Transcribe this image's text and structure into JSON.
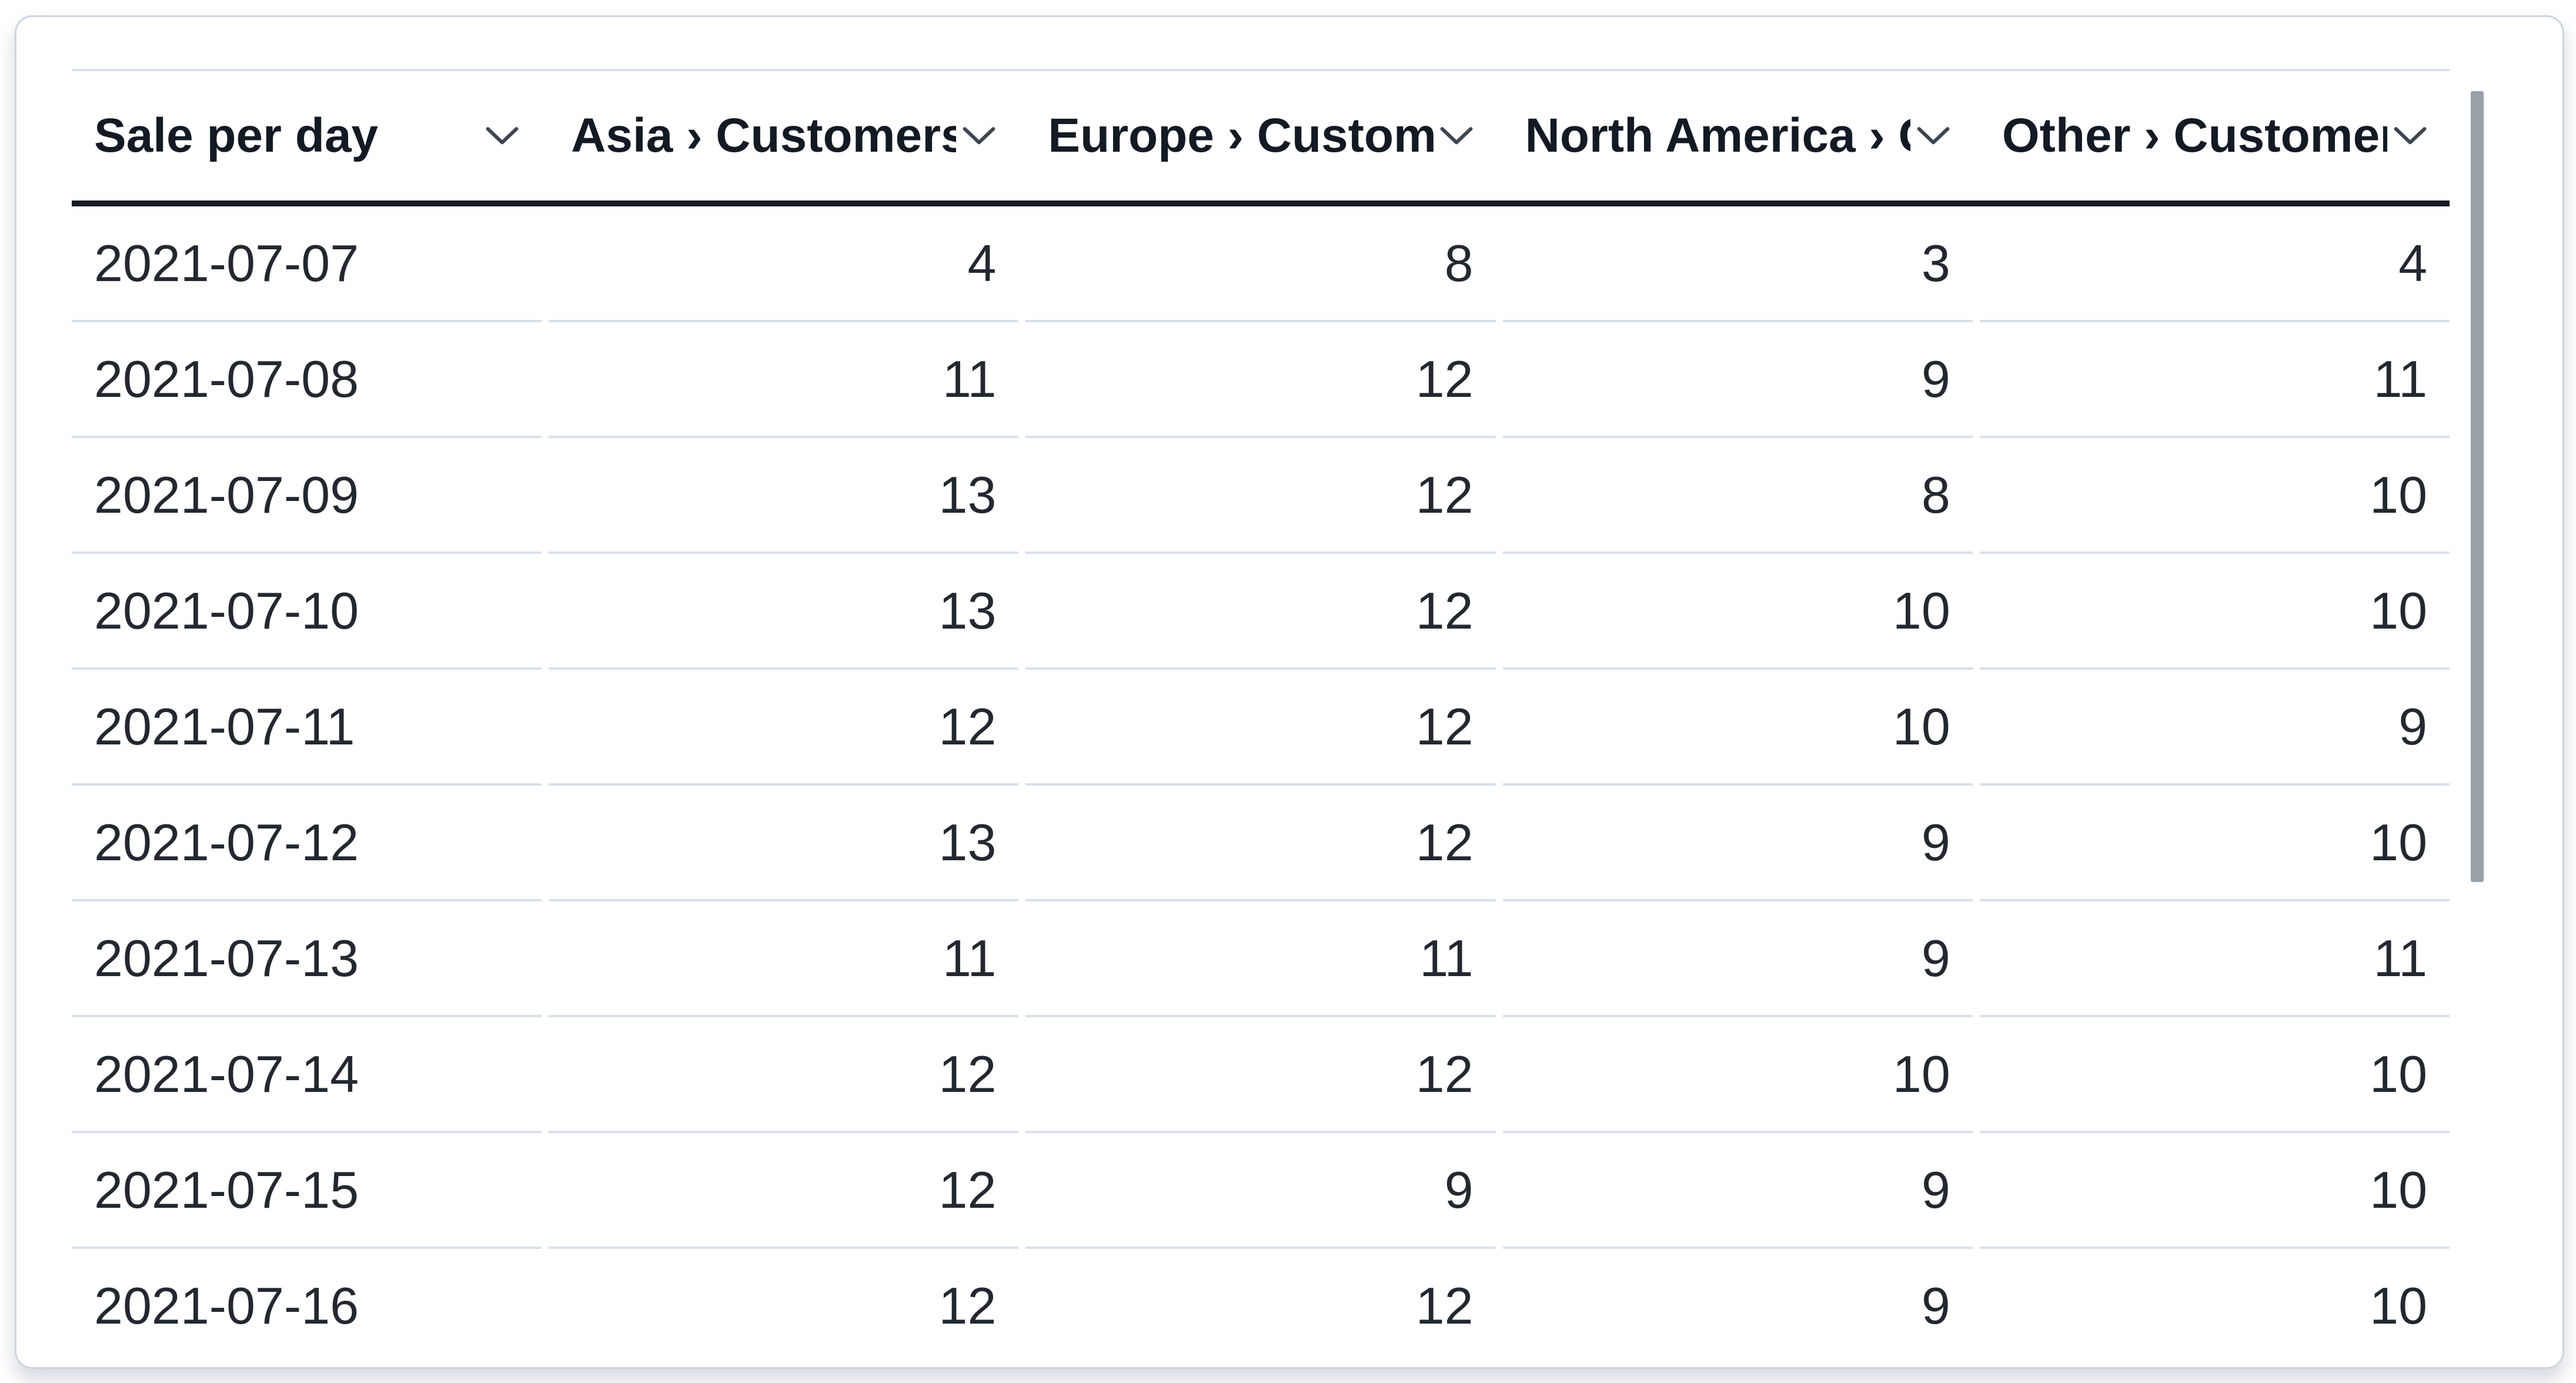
{
  "table": {
    "header": {
      "sort_icon": "chevron-down-icon",
      "columns": [
        {
          "label": "Sale per day",
          "align": "left"
        },
        {
          "label": "Asia › Customers",
          "align": "right"
        },
        {
          "label": "Europe › Customers",
          "align": "right"
        },
        {
          "label": "North America › Customers",
          "align": "right"
        },
        {
          "label": "Other › Customers",
          "align": "right"
        }
      ]
    },
    "rows": [
      [
        "2021-07-07",
        "4",
        "8",
        "3",
        "4"
      ],
      [
        "2021-07-08",
        "11",
        "12",
        "9",
        "11"
      ],
      [
        "2021-07-09",
        "13",
        "12",
        "8",
        "10"
      ],
      [
        "2021-07-10",
        "13",
        "12",
        "10",
        "10"
      ],
      [
        "2021-07-11",
        "12",
        "12",
        "10",
        "9"
      ],
      [
        "2021-07-12",
        "13",
        "12",
        "9",
        "10"
      ],
      [
        "2021-07-13",
        "11",
        "11",
        "9",
        "11"
      ],
      [
        "2021-07-14",
        "12",
        "12",
        "10",
        "10"
      ],
      [
        "2021-07-15",
        "12",
        "9",
        "9",
        "10"
      ],
      [
        "2021-07-16",
        "12",
        "12",
        "9",
        "10"
      ]
    ]
  },
  "scrollbar": {
    "orientation": "vertical"
  },
  "colors": {
    "card_background": "#ffffff",
    "page_background": "#ffffff",
    "card_border": "#ccd5df",
    "table_top_border": "#dbe2eb",
    "header_underline": "#171c24",
    "row_separator": "#d9e0ea",
    "header_text": "#131a23",
    "cell_text": "#232830",
    "chevron": "#3d4651",
    "scrollbar_thumb": "#99a0a8"
  }
}
